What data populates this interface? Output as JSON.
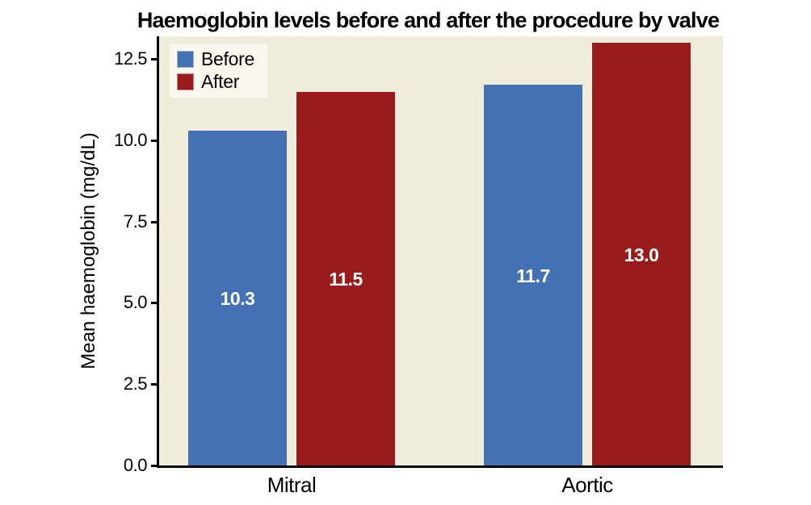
{
  "chart_data": {
    "type": "bar",
    "title": "Haemoglobin levels before and after the procedure by valve",
    "xlabel": "",
    "ylabel": "Mean haemoglobin (mg/dL)",
    "categories": [
      "Mitral",
      "Aortic"
    ],
    "series": [
      {
        "name": "Before",
        "color": "#4471b3",
        "values": [
          10.3,
          11.7
        ],
        "value_labels": [
          "10.3",
          "11.7"
        ]
      },
      {
        "name": "After",
        "color": "#991b1b",
        "values": [
          11.5,
          13.0
        ],
        "value_labels": [
          "11.5",
          "13.0"
        ]
      }
    ],
    "yticks": [
      0,
      2.5,
      5,
      7.5,
      10,
      12.5
    ],
    "ytick_labels": [
      "0.0",
      "2.5",
      "5.0",
      "7.5",
      "10.0",
      "12.5"
    ],
    "ylim": [
      0,
      13.2
    ],
    "grid": false,
    "legend_position": "top-left",
    "colors": {
      "plot_background": "#f0ecdb",
      "legend_background": "#faf8ee",
      "axis": "#000000",
      "bar_value_label": "#ffffff",
      "page_background": "#ffffff"
    }
  }
}
